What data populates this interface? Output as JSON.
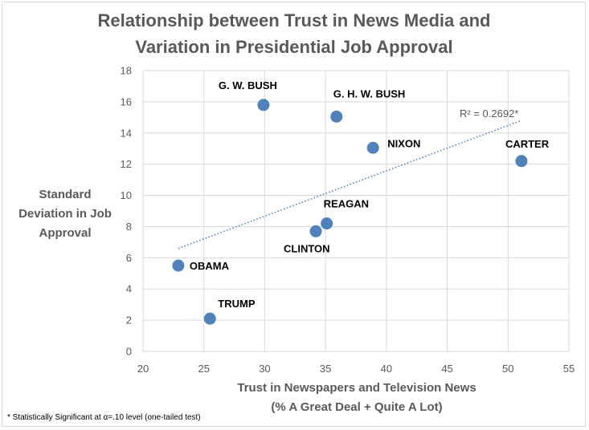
{
  "chart_data": {
    "type": "scatter",
    "title": [
      "Relationship between Trust in News Media and",
      "Variation in Presidential Job Approval"
    ],
    "xlabel": [
      "Trust in Newspapers and Television News",
      "(% A Great Deal + Quite A Lot)"
    ],
    "ylabel": [
      "Standard",
      "Deviation in Job",
      "Approval"
    ],
    "xlim": [
      20,
      55
    ],
    "ylim": [
      0,
      18
    ],
    "xticks": [
      20,
      25,
      30,
      35,
      40,
      45,
      50,
      55
    ],
    "yticks": [
      0,
      2,
      4,
      6,
      8,
      10,
      12,
      14,
      16,
      18
    ],
    "grid": true,
    "points": [
      {
        "label": "G. W. BUSH",
        "x": 29.9,
        "y": 15.8
      },
      {
        "label": "G. H. W. BUSH",
        "x": 35.9,
        "y": 15.05
      },
      {
        "label": "NIXON",
        "x": 38.9,
        "y": 13.05
      },
      {
        "label": "CARTER",
        "x": 51.1,
        "y": 12.2
      },
      {
        "label": "REAGAN",
        "x": 35.1,
        "y": 8.2
      },
      {
        "label": "CLINTON",
        "x": 34.2,
        "y": 7.7
      },
      {
        "label": "OBAMA",
        "x": 22.9,
        "y": 5.5
      },
      {
        "label": "TRUMP",
        "x": 25.5,
        "y": 2.1
      }
    ],
    "trendline": {
      "x_start": 22.9,
      "y_start": 6.6,
      "x_end": 51.1,
      "y_end": 14.8,
      "label": "R² = 0.2692*"
    },
    "colors": {
      "marker": "#4f81bd",
      "trendline": "#4f81bd",
      "grid": "#d9d9d9",
      "text": "#595959"
    }
  },
  "footnote": "* Statistically Significant at α=.10 level (one-tailed test)"
}
